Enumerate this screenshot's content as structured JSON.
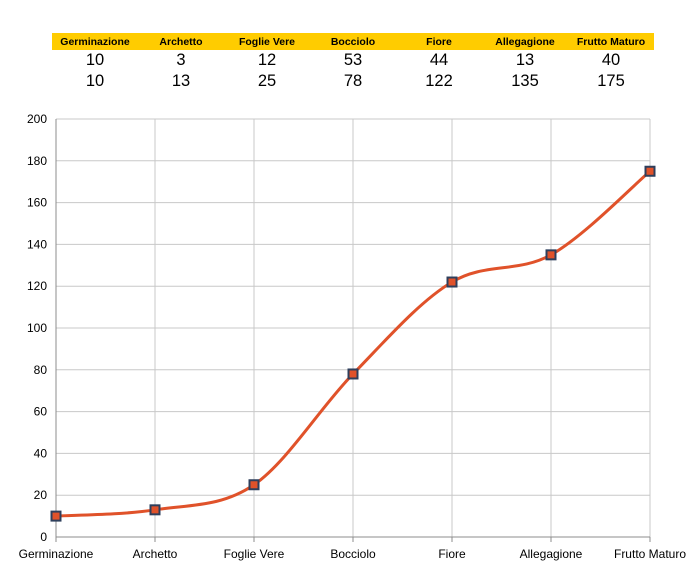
{
  "table": {
    "headers": [
      "Germinazione",
      "Archetto",
      "Foglie Vere",
      "Bocciolo",
      "Fiore",
      "Allegagione",
      "Frutto Maturo"
    ],
    "rows": [
      [
        10,
        3,
        12,
        53,
        44,
        13,
        40
      ],
      [
        10,
        13,
        25,
        78,
        122,
        135,
        175
      ]
    ]
  },
  "colors": {
    "header_bg": "#ffcc00",
    "line": "#e0522a",
    "marker_border": "#2e3f5c",
    "grid": "#c8c8c8"
  },
  "chart_data": {
    "type": "line",
    "smooth": true,
    "categories": [
      "Germinazione",
      "Archetto",
      "Foglie Vere",
      "Bocciolo",
      "Fiore",
      "Allegagione",
      "Frutto Maturo"
    ],
    "series": [
      {
        "values": [
          10,
          13,
          25,
          78,
          122,
          135,
          175
        ]
      }
    ],
    "ylim": [
      0,
      200
    ],
    "yticks": [
      0,
      20,
      40,
      60,
      80,
      100,
      120,
      140,
      160,
      180,
      200
    ],
    "grid": true,
    "legend": "none",
    "title": "",
    "xlabel": "",
    "ylabel": ""
  }
}
